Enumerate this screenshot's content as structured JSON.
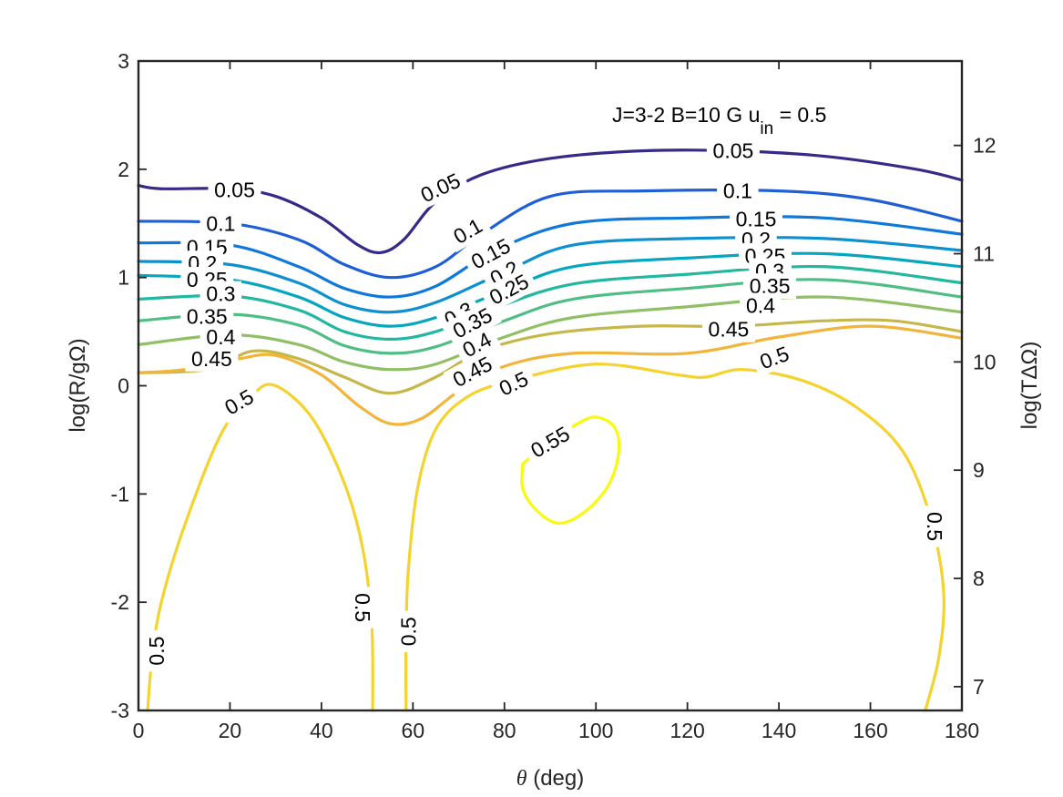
{
  "chart_data": {
    "type": "contour",
    "title": "",
    "annotation": {
      "main": "J=3-2  B=10 G  u",
      "sub": "in",
      "tail": " = 0.5"
    },
    "xlabel": {
      "italic": "θ",
      "rest": " (deg)"
    },
    "ylabel": "log(R/gΩ)",
    "y2label": "log(TΔΩ)",
    "xlim": [
      0,
      180
    ],
    "ylim": [
      -3,
      3
    ],
    "y2lim": [
      6.78,
      12.78
    ],
    "xticks": [
      "0",
      "20",
      "40",
      "60",
      "80",
      "100",
      "120",
      "140",
      "160",
      "180"
    ],
    "yticks": [
      "-3",
      "-2",
      "-1",
      "0",
      "1",
      "2",
      "3"
    ],
    "y2ticks": [
      "7",
      "8",
      "9",
      "10",
      "11",
      "12"
    ],
    "levels": [
      {
        "level": "0.05",
        "color": "#352a87",
        "points": [
          [
            0,
            1.85
          ],
          [
            5,
            1.82
          ],
          [
            20,
            1.82
          ],
          [
            30,
            1.75
          ],
          [
            40,
            1.55
          ],
          [
            48,
            1.3
          ],
          [
            53,
            1.23
          ],
          [
            58,
            1.35
          ],
          [
            65,
            1.7
          ],
          [
            75,
            1.95
          ],
          [
            90,
            2.1
          ],
          [
            110,
            2.17
          ],
          [
            130,
            2.17
          ],
          [
            150,
            2.12
          ],
          [
            170,
            2.0
          ],
          [
            180,
            1.9
          ]
        ],
        "labels": [
          {
            "x": 21,
            "y": 1.81,
            "t": "0.05",
            "rot": 0
          },
          {
            "x": 66,
            "y": 1.83,
            "t": "0.05",
            "rot": -25
          },
          {
            "x": 130,
            "y": 2.17,
            "t": "0.05",
            "rot": 0
          }
        ]
      },
      {
        "level": "0.1",
        "color": "#1f5fd6",
        "points": [
          [
            0,
            1.52
          ],
          [
            20,
            1.5
          ],
          [
            35,
            1.35
          ],
          [
            45,
            1.12
          ],
          [
            55,
            1.0
          ],
          [
            65,
            1.1
          ],
          [
            75,
            1.4
          ],
          [
            90,
            1.75
          ],
          [
            110,
            1.8
          ],
          [
            140,
            1.8
          ],
          [
            160,
            1.72
          ],
          [
            180,
            1.52
          ]
        ],
        "labels": [
          {
            "x": 18,
            "y": 1.5,
            "t": "0.1",
            "rot": 0
          },
          {
            "x": 72,
            "y": 1.43,
            "t": "0.1",
            "rot": -30
          },
          {
            "x": 131,
            "y": 1.8,
            "t": "0.1",
            "rot": 0
          }
        ]
      },
      {
        "level": "0.15",
        "color": "#0f79d9",
        "points": [
          [
            0,
            1.32
          ],
          [
            20,
            1.3
          ],
          [
            35,
            1.1
          ],
          [
            45,
            0.9
          ],
          [
            55,
            0.82
          ],
          [
            65,
            0.92
          ],
          [
            78,
            1.25
          ],
          [
            95,
            1.5
          ],
          [
            120,
            1.55
          ],
          [
            150,
            1.55
          ],
          [
            180,
            1.4
          ]
        ],
        "labels": [
          {
            "x": 15,
            "y": 1.28,
            "t": "0.15",
            "rot": 0
          },
          {
            "x": 77,
            "y": 1.22,
            "t": "0.15",
            "rot": -28
          },
          {
            "x": 135,
            "y": 1.54,
            "t": "0.15",
            "rot": 0
          }
        ]
      },
      {
        "level": "0.2",
        "color": "#0d90cf",
        "points": [
          [
            0,
            1.15
          ],
          [
            20,
            1.12
          ],
          [
            35,
            0.95
          ],
          [
            45,
            0.75
          ],
          [
            55,
            0.68
          ],
          [
            65,
            0.77
          ],
          [
            80,
            1.05
          ],
          [
            95,
            1.3
          ],
          [
            120,
            1.36
          ],
          [
            150,
            1.36
          ],
          [
            180,
            1.25
          ]
        ],
        "labels": [
          {
            "x": 14,
            "y": 1.13,
            "t": "0.2",
            "rot": 0
          },
          {
            "x": 80,
            "y": 1.04,
            "t": "0.2",
            "rot": -28
          },
          {
            "x": 135,
            "y": 1.35,
            "t": "0.2",
            "rot": 0
          }
        ]
      },
      {
        "level": "0.25",
        "color": "#07a6bf",
        "points": [
          [
            0,
            1.02
          ],
          [
            20,
            0.98
          ],
          [
            35,
            0.82
          ],
          [
            45,
            0.63
          ],
          [
            55,
            0.55
          ],
          [
            65,
            0.63
          ],
          [
            80,
            0.88
          ],
          [
            95,
            1.1
          ],
          [
            120,
            1.18
          ],
          [
            150,
            1.22
          ],
          [
            180,
            1.1
          ]
        ],
        "labels": [
          {
            "x": 15,
            "y": 0.98,
            "t": "0.25",
            "rot": 0
          },
          {
            "x": 81,
            "y": 0.89,
            "t": "0.25",
            "rot": -28
          },
          {
            "x": 137,
            "y": 1.2,
            "t": "0.25",
            "rot": 0
          }
        ]
      },
      {
        "level": "0.3",
        "color": "#21b7a0",
        "points": [
          [
            0,
            0.8
          ],
          [
            20,
            0.83
          ],
          [
            35,
            0.7
          ],
          [
            45,
            0.5
          ],
          [
            55,
            0.43
          ],
          [
            65,
            0.5
          ],
          [
            78,
            0.72
          ],
          [
            95,
            0.94
          ],
          [
            120,
            1.03
          ],
          [
            150,
            1.1
          ],
          [
            180,
            0.95
          ]
        ],
        "labels": [
          {
            "x": 18,
            "y": 0.85,
            "t": "0.3",
            "rot": 0
          },
          {
            "x": 70,
            "y": 0.66,
            "t": "0.3",
            "rot": -28
          },
          {
            "x": 138,
            "y": 1.06,
            "t": "0.3",
            "rot": 0
          }
        ]
      },
      {
        "level": "0.35",
        "color": "#4fbe84",
        "points": [
          [
            0,
            0.6
          ],
          [
            20,
            0.66
          ],
          [
            35,
            0.56
          ],
          [
            45,
            0.37
          ],
          [
            55,
            0.3
          ],
          [
            65,
            0.36
          ],
          [
            80,
            0.6
          ],
          [
            95,
            0.8
          ],
          [
            120,
            0.9
          ],
          [
            150,
            0.98
          ],
          [
            180,
            0.82
          ]
        ],
        "labels": [
          {
            "x": 15,
            "y": 0.64,
            "t": "0.35",
            "rot": 0
          },
          {
            "x": 73,
            "y": 0.58,
            "t": "0.35",
            "rot": -28
          },
          {
            "x": 138,
            "y": 0.92,
            "t": "0.35",
            "rot": 0
          }
        ]
      },
      {
        "level": "0.4",
        "color": "#90bf66",
        "points": [
          [
            0,
            0.38
          ],
          [
            20,
            0.47
          ],
          [
            35,
            0.38
          ],
          [
            45,
            0.22
          ],
          [
            55,
            0.15
          ],
          [
            65,
            0.2
          ],
          [
            80,
            0.45
          ],
          [
            95,
            0.63
          ],
          [
            120,
            0.73
          ],
          [
            150,
            0.82
          ],
          [
            180,
            0.68
          ]
        ],
        "labels": [
          {
            "x": 18,
            "y": 0.45,
            "t": "0.4",
            "rot": 0
          },
          {
            "x": 74,
            "y": 0.38,
            "t": "0.4",
            "rot": -28
          },
          {
            "x": 136,
            "y": 0.74,
            "t": "0.4",
            "rot": 0
          }
        ]
      },
      {
        "level": "0.45",
        "color": "#c6b74a",
        "points": [
          [
            0,
            0.12
          ],
          [
            15,
            0.15
          ],
          [
            25,
            0.32
          ],
          [
            35,
            0.25
          ],
          [
            45,
            0.08
          ],
          [
            55,
            -0.07
          ],
          [
            65,
            0.08
          ],
          [
            75,
            0.32
          ],
          [
            90,
            0.48
          ],
          [
            110,
            0.55
          ],
          [
            130,
            0.55
          ],
          [
            150,
            0.6
          ],
          [
            165,
            0.6
          ],
          [
            180,
            0.5
          ]
        ],
        "labels": [
          {
            "x": 16,
            "y": 0.25,
            "t": "0.45",
            "rot": 0
          },
          {
            "x": 73,
            "y": 0.13,
            "t": "0.45",
            "rot": -28
          },
          {
            "x": 129,
            "y": 0.52,
            "t": "0.45",
            "rot": 0
          }
        ]
      },
      {
        "level": "0.5",
        "color": "#f2b53b",
        "points": [
          [
            0,
            0.12
          ],
          [
            10,
            0.15
          ],
          [
            22,
            0.25
          ],
          [
            30,
            0.28
          ],
          [
            40,
            0.1
          ],
          [
            48,
            -0.18
          ],
          [
            55,
            -0.35
          ],
          [
            62,
            -0.3
          ],
          [
            70,
            -0.05
          ],
          [
            80,
            0.18
          ],
          [
            95,
            0.3
          ],
          [
            120,
            0.3
          ],
          [
            140,
            0.45
          ],
          [
            160,
            0.55
          ],
          [
            180,
            0.44
          ]
        ],
        "labels": []
      },
      {
        "level": "0.5",
        "color": "#f5d32f",
        "points": [
          [
            2,
            -3.0
          ],
          [
            3,
            -2.5
          ],
          [
            5,
            -2.0
          ],
          [
            10,
            -1.3
          ],
          [
            18,
            -0.45
          ],
          [
            25,
            -0.08
          ],
          [
            30,
            0.0
          ],
          [
            38,
            -0.3
          ],
          [
            45,
            -0.9
          ],
          [
            49,
            -1.5
          ],
          [
            51,
            -2.2
          ],
          [
            51.2,
            -3.0
          ]
        ],
        "labels": [
          {
            "x": 4,
            "y": -2.45,
            "t": "0.5",
            "rot": -90
          },
          {
            "x": 22,
            "y": -0.15,
            "t": "0.5",
            "rot": -30
          },
          {
            "x": 49,
            "y": -2.05,
            "t": "0.5",
            "rot": 90
          }
        ]
      },
      {
        "level": "0.5",
        "color": "#f5d32f",
        "points": [
          [
            58.5,
            -3.0
          ],
          [
            58.5,
            -2.3
          ],
          [
            59,
            -1.7
          ],
          [
            61,
            -0.95
          ],
          [
            65,
            -0.4
          ],
          [
            72,
            -0.1
          ],
          [
            82,
            0.05
          ],
          [
            100,
            0.2
          ],
          [
            118,
            0.1
          ],
          [
            124,
            0.08
          ],
          [
            132,
            0.15
          ],
          [
            145,
            0.05
          ],
          [
            157,
            -0.2
          ],
          [
            167,
            -0.6
          ],
          [
            173,
            -1.2
          ],
          [
            176,
            -1.9
          ],
          [
            175,
            -2.5
          ],
          [
            172,
            -3.0
          ]
        ],
        "labels": [
          {
            "x": 59,
            "y": -2.27,
            "t": "0.5",
            "rot": -90
          },
          {
            "x": 82,
            "y": 0.02,
            "t": "0.5",
            "rot": -25
          },
          {
            "x": 139,
            "y": 0.26,
            "t": "0.5",
            "rot": -20
          },
          {
            "x": 174,
            "y": -1.3,
            "t": "0.5",
            "rot": 90
          }
        ]
      },
      {
        "level": "0.55",
        "color": "#f9fb0e",
        "points": [
          [
            84,
            -0.72
          ],
          [
            84,
            -0.95
          ],
          [
            87,
            -1.15
          ],
          [
            92,
            -1.27
          ],
          [
            98,
            -1.15
          ],
          [
            103,
            -0.9
          ],
          [
            105,
            -0.6
          ],
          [
            104,
            -0.38
          ],
          [
            100,
            -0.29
          ],
          [
            96,
            -0.35
          ],
          [
            90,
            -0.52
          ],
          [
            84,
            -0.72
          ]
        ],
        "labels": [
          {
            "x": 90,
            "y": -0.52,
            "t": "0.55",
            "rot": -30
          }
        ]
      }
    ]
  }
}
